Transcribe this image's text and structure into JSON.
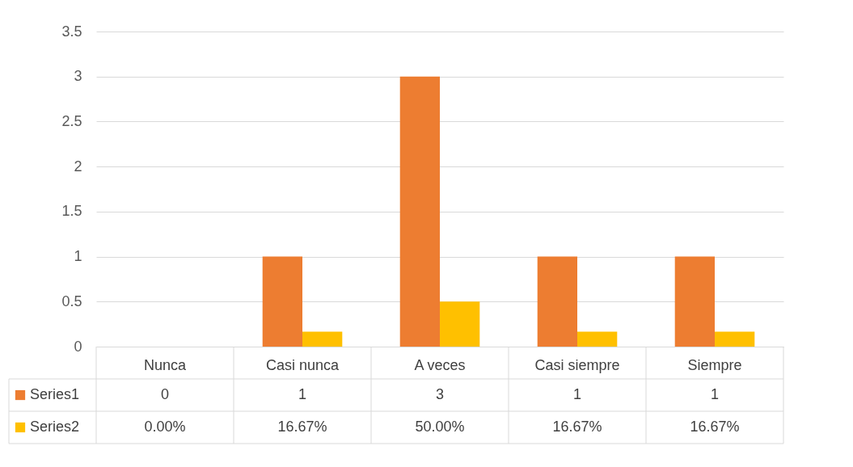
{
  "chart_data": {
    "type": "bar",
    "categories": [
      "Nunca",
      "Casi nunca",
      "A veces",
      "Casi siempre",
      "Siempre"
    ],
    "series": [
      {
        "name": "Series1",
        "color": "#ed7d31",
        "values": [
          0,
          1,
          3,
          1,
          1
        ],
        "value_labels": [
          "0",
          "1",
          "3",
          "1",
          "1"
        ]
      },
      {
        "name": "Series2",
        "color": "#ffc000",
        "values": [
          0,
          0.1667,
          0.5,
          0.1667,
          0.1667
        ],
        "value_labels": [
          "0.00%",
          "16.67%",
          "50.00%",
          "16.67%",
          "16.67%"
        ]
      }
    ],
    "ylim": [
      0,
      3.5
    ],
    "yticks": [
      0,
      0.5,
      1,
      1.5,
      2,
      2.5,
      3,
      3.5
    ],
    "grid": "y",
    "legend": "bottom"
  }
}
